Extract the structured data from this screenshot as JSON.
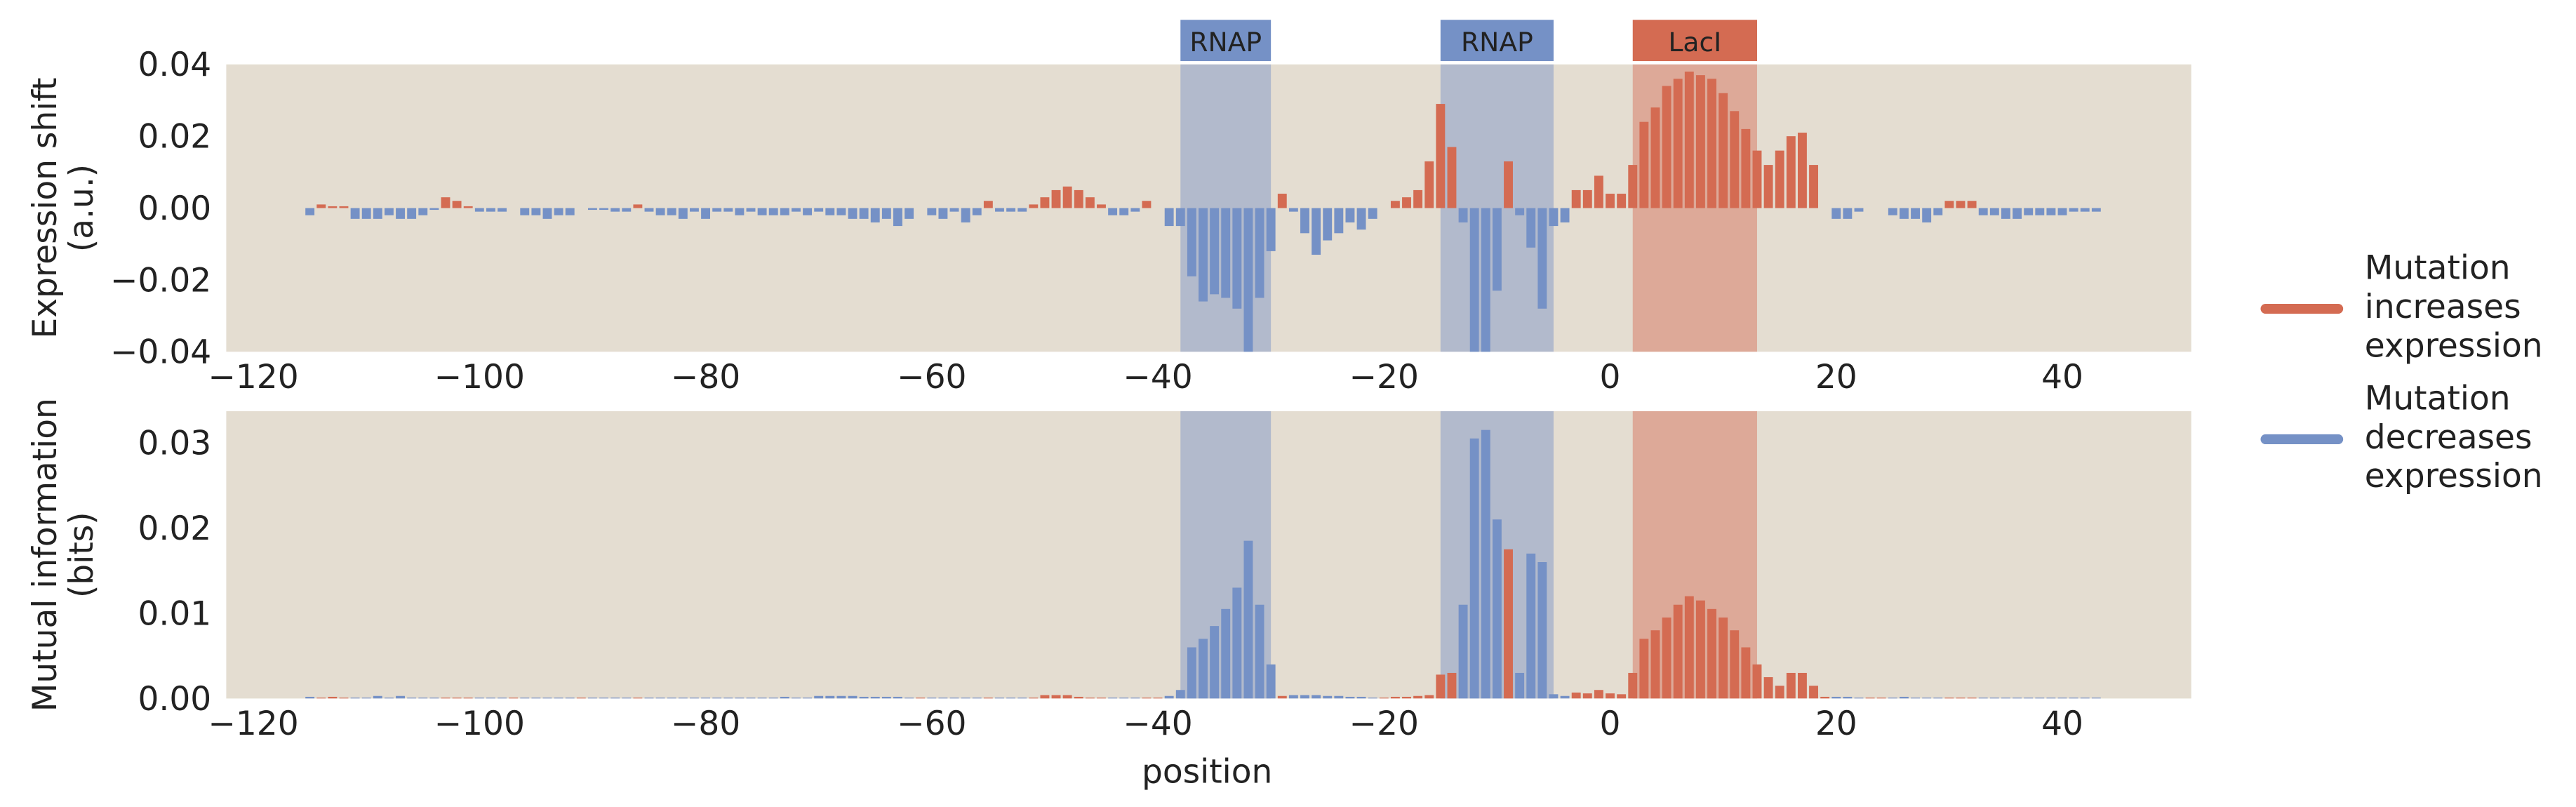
{
  "chart_data": {
    "type": "bar",
    "xlabel": "position",
    "xlim": [
      -122.4,
      51.4
    ],
    "xticks": [
      {
        "value": -120,
        "label": "−120"
      },
      {
        "value": -100,
        "label": "−100"
      },
      {
        "value": -80,
        "label": "−80"
      },
      {
        "value": -60,
        "label": "−60"
      },
      {
        "value": -40,
        "label": "−40"
      },
      {
        "value": -20,
        "label": "−20"
      },
      0,
      20,
      40
    ],
    "x": [
      -115,
      -114,
      -113,
      -112,
      -111,
      -110,
      -109,
      -108,
      -107,
      -106,
      -105,
      -104,
      -103,
      -102,
      -101,
      -100,
      -99,
      -98,
      -97,
      -96,
      -95,
      -94,
      -93,
      -92,
      -91,
      -90,
      -89,
      -88,
      -87,
      -86,
      -85,
      -84,
      -83,
      -82,
      -81,
      -80,
      -79,
      -78,
      -77,
      -76,
      -75,
      -74,
      -73,
      -72,
      -71,
      -70,
      -69,
      -68,
      -67,
      -66,
      -65,
      -64,
      -63,
      -62,
      -61,
      -60,
      -59,
      -58,
      -57,
      -56,
      -55,
      -54,
      -53,
      -52,
      -51,
      -50,
      -49,
      -48,
      -47,
      -46,
      -45,
      -44,
      -43,
      -42,
      -41,
      -40,
      -39,
      -38,
      -37,
      -36,
      -35,
      -34,
      -33,
      -32,
      -31,
      -30,
      -29,
      -28,
      -27,
      -26,
      -25,
      -24,
      -23,
      -22,
      -21,
      -20,
      -19,
      -18,
      -17,
      -16,
      -15,
      -14,
      -13,
      -12,
      -11,
      -10,
      -9,
      -8,
      -7,
      -6,
      -5,
      -4,
      -3,
      -2,
      -1,
      0,
      1,
      2,
      3,
      4,
      5,
      6,
      7,
      8,
      9,
      10,
      11,
      12,
      13,
      14,
      15,
      16,
      17,
      18,
      19,
      20,
      21,
      22,
      23,
      24,
      25,
      26,
      27,
      28,
      29,
      30,
      31,
      32,
      33,
      34,
      35,
      36,
      37,
      38,
      39,
      40,
      41,
      42,
      43
    ],
    "series": [
      {
        "name": [
          "Mutation",
          "increases",
          "expression"
        ],
        "color": "#d46b52"
      },
      {
        "name": [
          "Mutation",
          "decreases",
          "expression"
        ],
        "color": "#7591c6"
      }
    ],
    "regions": [
      {
        "label": "RNAP",
        "start": -38,
        "end": -30,
        "color": "#7591c6"
      },
      {
        "label": "RNAP",
        "start": -15,
        "end": -5,
        "color": "#7591c6"
      },
      {
        "label": "LacI",
        "start": 2,
        "end": 13,
        "color": "#d46b52"
      }
    ],
    "panels": [
      {
        "ylabel": [
          "Expression shift",
          "(a.u.)"
        ],
        "ylim": [
          -0.04,
          0.04
        ],
        "yticks": [
          {
            "value": -0.04,
            "label": "−0.04"
          },
          {
            "value": -0.02,
            "label": "−0.02"
          },
          {
            "value": 0,
            "label": "0.00"
          },
          {
            "value": 0.02,
            "label": "0.02"
          },
          {
            "value": 0.04,
            "label": "0.04"
          }
        ],
        "values": [
          -0.002,
          0.001,
          0.0005,
          0.0005,
          -0.003,
          -0.003,
          -0.003,
          -0.002,
          -0.003,
          -0.003,
          -0.002,
          -0.0005,
          0.003,
          0.002,
          0.0005,
          -0.001,
          -0.001,
          -0.001,
          0,
          -0.002,
          -0.002,
          -0.003,
          -0.002,
          -0.002,
          0,
          -0.0005,
          -0.0005,
          -0.001,
          -0.001,
          0.001,
          -0.001,
          -0.002,
          -0.002,
          -0.003,
          -0.001,
          -0.003,
          -0.001,
          -0.001,
          -0.002,
          -0.001,
          -0.002,
          -0.002,
          -0.002,
          -0.001,
          -0.002,
          -0.001,
          -0.002,
          -0.002,
          -0.003,
          -0.003,
          -0.004,
          -0.003,
          -0.005,
          -0.003,
          0,
          -0.002,
          -0.003,
          -0.001,
          -0.004,
          -0.002,
          0.002,
          -0.001,
          -0.001,
          -0.001,
          0.001,
          0.003,
          0.005,
          0.006,
          0.005,
          0.003,
          0.001,
          -0.002,
          -0.002,
          -0.001,
          0.002,
          0,
          -0.005,
          -0.005,
          -0.019,
          -0.026,
          -0.024,
          -0.025,
          -0.028,
          -0.045,
          -0.025,
          -0.012,
          0.004,
          -0.001,
          -0.007,
          -0.013,
          -0.009,
          -0.007,
          -0.004,
          -0.006,
          -0.003,
          0,
          0.002,
          0.003,
          0.005,
          0.013,
          0.029,
          0.017,
          -0.004,
          -0.042,
          -0.048,
          -0.023,
          0.013,
          -0.002,
          -0.011,
          -0.028,
          -0.005,
          -0.004,
          0.005,
          0.005,
          0.009,
          0.004,
          0.004,
          0.012,
          0.024,
          0.028,
          0.034,
          0.036,
          0.038,
          0.037,
          0.036,
          0.032,
          0.027,
          0.022,
          0.016,
          0.012,
          0.016,
          0.02,
          0.021,
          0.012,
          0,
          -0.003,
          -0.003,
          -0.001,
          0,
          0,
          -0.002,
          -0.003,
          -0.003,
          -0.004,
          -0.002,
          0.002,
          0.002,
          0.002,
          -0.002,
          -0.002,
          -0.003,
          -0.003,
          -0.002,
          -0.002,
          -0.002,
          -0.002,
          -0.001,
          -0.001,
          -0.001
        ]
      },
      {
        "ylabel": [
          "Mutual information",
          "(bits)"
        ],
        "ylim": [
          0,
          0.0337
        ],
        "yticks": [
          {
            "value": 0,
            "label": "0.00"
          },
          {
            "value": 0.01,
            "label": "0.01"
          },
          {
            "value": 0.02,
            "label": "0.02"
          },
          {
            "value": 0.03,
            "label": "0.03"
          }
        ],
        "values": [
          0.0002,
          0.0001,
          0.0002,
          0.0001,
          0.0001,
          0.0001,
          0.0003,
          0.0001,
          0.0003,
          0.0001,
          0.0001,
          0.0001,
          0.0001,
          0.0001,
          0.0001,
          0.0001,
          0.0001,
          0.0001,
          0.0001,
          0.0001,
          0.0001,
          0.0001,
          0.0001,
          0.0001,
          0.0001,
          0.0001,
          0.0001,
          0.0001,
          0.0001,
          0.0001,
          0.0001,
          0.0001,
          0.0001,
          0.0001,
          0.0001,
          0.0001,
          0.0001,
          0.0001,
          0.0001,
          0.0001,
          0.0001,
          0.0001,
          0.0002,
          0.0001,
          0.0001,
          0.0003,
          0.0003,
          0.0003,
          0.0003,
          0.0002,
          0.0002,
          0.0002,
          0.0002,
          0.0001,
          0.0001,
          0.0001,
          0.0001,
          0.0001,
          0.0001,
          0.0001,
          0.0001,
          0.0001,
          0.0001,
          0.0001,
          0.0001,
          0.0004,
          0.0004,
          0.0004,
          0.0002,
          0.0001,
          0.0001,
          0.0001,
          0.0001,
          0.0001,
          0.0001,
          0.0001,
          0.0003,
          0.001,
          0.006,
          0.007,
          0.0085,
          0.0105,
          0.013,
          0.0185,
          0.011,
          0.004,
          0.0003,
          0.0004,
          0.0004,
          0.0004,
          0.0003,
          0.0003,
          0.0002,
          0.0002,
          0.0001,
          0.0001,
          0.0002,
          0.0002,
          0.0003,
          0.0004,
          0.0028,
          0.003,
          0.011,
          0.0305,
          0.0315,
          0.021,
          0.0175,
          0.003,
          0.017,
          0.016,
          0.0005,
          0.0003,
          0.0007,
          0.0006,
          0.001,
          0.0006,
          0.0005,
          0.003,
          0.007,
          0.008,
          0.0095,
          0.011,
          0.012,
          0.0115,
          0.0105,
          0.0095,
          0.008,
          0.006,
          0.004,
          0.0025,
          0.0015,
          0.003,
          0.003,
          0.0015,
          0.0002,
          0.0002,
          0.0002,
          0.0001,
          0.0001,
          0.0001,
          0.0001,
          0.0002,
          0.0001,
          0.0001,
          0.0001,
          0.0001,
          0.0001,
          0.0001,
          0.0001,
          0.0001,
          0.0001,
          0.0001,
          0.0001,
          0.0001,
          0.0001,
          0.0001,
          0.0001,
          0.0001,
          0.0001
        ]
      }
    ]
  }
}
